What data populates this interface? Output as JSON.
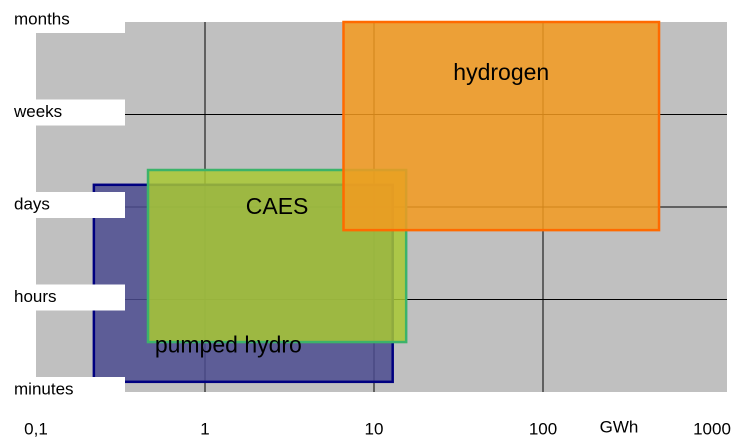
{
  "chart_data": {
    "type": "range",
    "x_label": "GWh",
    "log_x": true,
    "xlim": [
      0.1,
      1000
    ],
    "xticks": [
      {
        "value": 0.1,
        "label": "0,1"
      },
      1,
      10,
      100,
      1000
    ],
    "ylim": [
      0,
      4
    ],
    "yticks": [
      {
        "value": 0,
        "label": "minutes"
      },
      {
        "value": 1,
        "label": "hours"
      },
      {
        "value": 2,
        "label": "days"
      },
      {
        "value": 3,
        "label": "weeks"
      },
      {
        "value": 4,
        "label": "months"
      }
    ],
    "grid": true,
    "series": [
      {
        "name": "pumped hydro",
        "color": "#4b4b8f",
        "edge": "#000080",
        "x": [
          0.22,
          12.9
        ],
        "y": [
          0.11,
          2.24
        ]
      },
      {
        "name": "CAES",
        "color": "#a8c832",
        "edge": "#3cb36a",
        "x": [
          0.46,
          15.5
        ],
        "y": [
          0.54,
          2.4
        ]
      },
      {
        "name": "hydrogen",
        "color": "#f39a1e",
        "edge": "#ff6a00",
        "x": [
          6.6,
          486
        ],
        "y": [
          1.75,
          4
        ]
      }
    ]
  }
}
